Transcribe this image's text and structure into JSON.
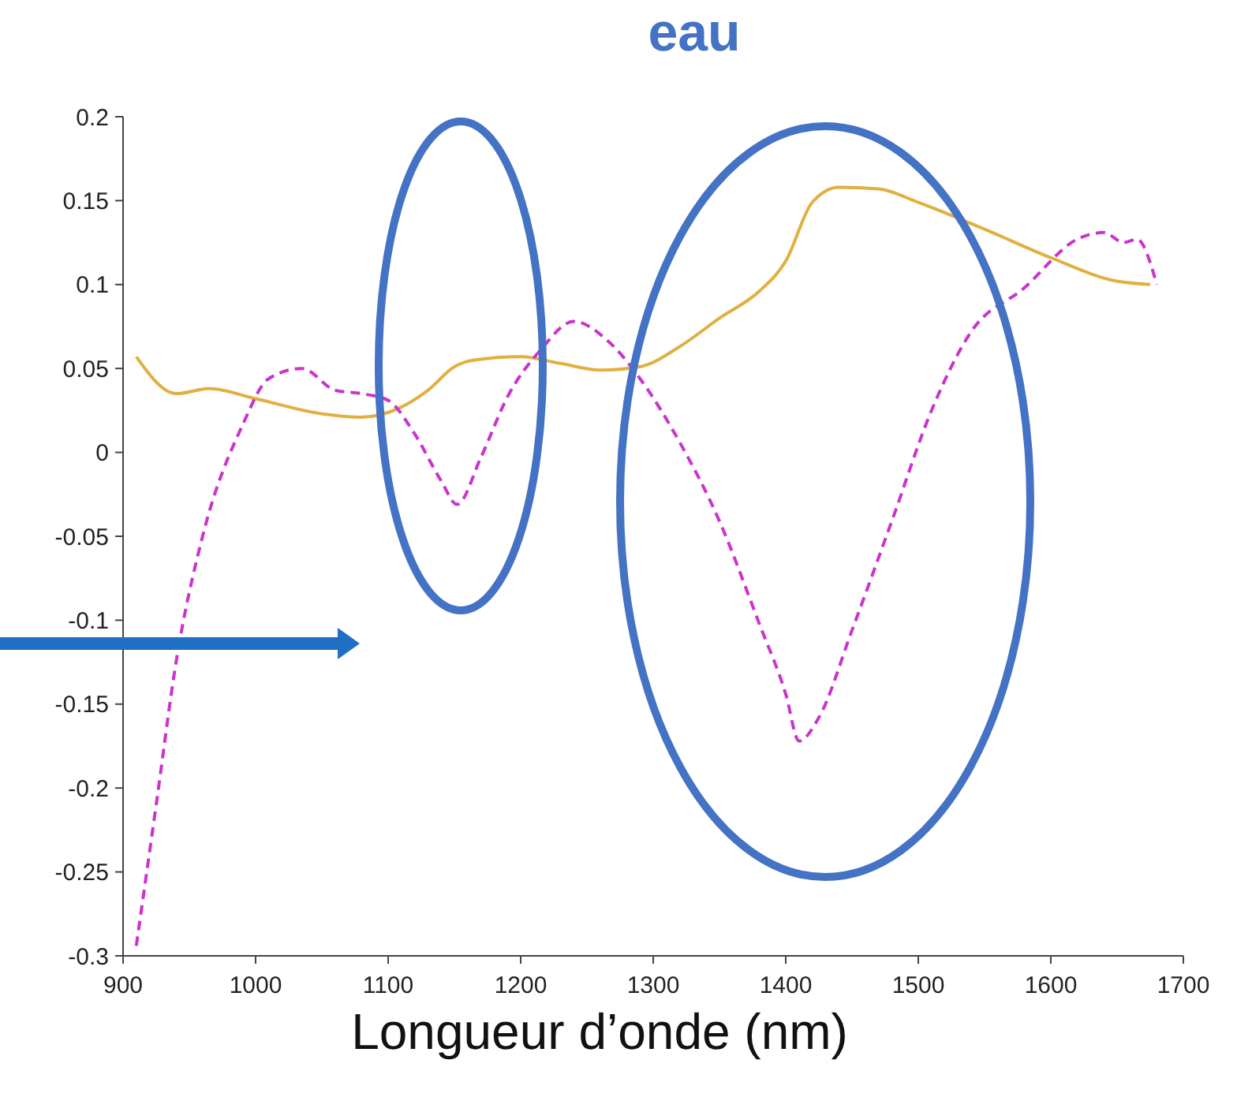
{
  "chart_data": {
    "type": "line",
    "title": "eau",
    "xlabel": "Longueur d’onde (nm)",
    "xlim": [
      900,
      1700
    ],
    "xticks": [
      900,
      1000,
      1100,
      1200,
      1300,
      1400,
      1500,
      1600,
      1700
    ],
    "ylim": [
      -0.3,
      0.2
    ],
    "yticks": [
      -0.3,
      -0.25,
      -0.2,
      -0.15,
      -0.1,
      -0.05,
      0,
      0.05,
      0.1,
      0.15,
      0.2
    ],
    "grid": false,
    "marker": "none",
    "series": [
      {
        "color": "#e0b040",
        "line_style": "solid",
        "x": [
          910,
          940,
          965,
          1000,
          1050,
          1080,
          1110,
          1130,
          1150,
          1165,
          1200,
          1230,
          1260,
          1290,
          1320,
          1350,
          1380,
          1400,
          1420,
          1440,
          1470,
          1500,
          1550,
          1600,
          1650,
          1675
        ],
        "values": [
          0.057,
          0.035,
          0.038,
          0.032,
          0.023,
          0.021,
          0.027,
          0.037,
          0.051,
          0.055,
          0.057,
          0.053,
          0.049,
          0.051,
          0.063,
          0.08,
          0.096,
          0.114,
          0.149,
          0.158,
          0.157,
          0.149,
          0.133,
          0.116,
          0.102,
          0.1
        ]
      },
      {
        "color": "#cc33cc",
        "line_style": "dashed",
        "x": [
          910,
          925,
          940,
          960,
          990,
          1010,
          1035,
          1060,
          1080,
          1100,
          1120,
          1140,
          1152,
          1170,
          1190,
          1215,
          1240,
          1265,
          1290,
          1320,
          1350,
          1380,
          1400,
          1410,
          1425,
          1450,
          1480,
          1510,
          1540,
          1580,
          1620,
          1640,
          1655,
          1665,
          1680
        ],
        "values": [
          -0.294,
          -0.21,
          -0.125,
          -0.05,
          0.016,
          0.044,
          0.05,
          0.037,
          0.035,
          0.031,
          0.011,
          -0.017,
          -0.031,
          -0.003,
          0.033,
          0.061,
          0.078,
          0.067,
          0.044,
          0.006,
          -0.041,
          -0.102,
          -0.144,
          -0.172,
          -0.158,
          -0.106,
          -0.041,
          0.025,
          0.072,
          0.098,
          0.127,
          0.131,
          0.125,
          0.127,
          0.1
        ]
      }
    ]
  }
}
